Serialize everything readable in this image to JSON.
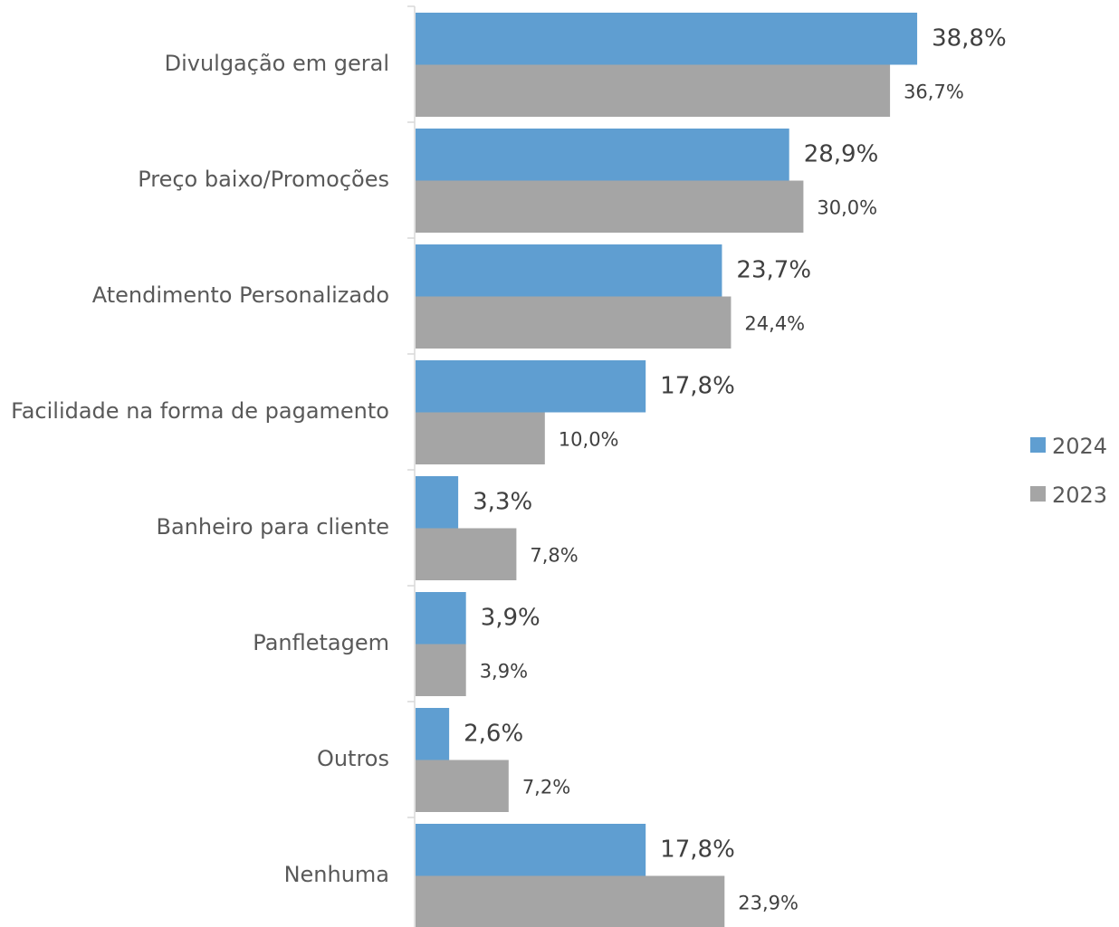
{
  "chart_data": {
    "type": "bar",
    "orientation": "horizontal",
    "categories": [
      "Divulgação em geral",
      "Preço baixo/Promoções",
      "Atendimento Personalizado",
      "Facilidade na forma de pagamento",
      "Banheiro para cliente",
      "Panfletagem",
      "Outros",
      "Nenhuma"
    ],
    "series": [
      {
        "name": "2024",
        "color": "#5f9ed1",
        "values": [
          38.8,
          28.9,
          23.7,
          17.8,
          3.3,
          3.9,
          2.6,
          17.8
        ],
        "value_labels": [
          "38,8%",
          "28,9%",
          "23,7%",
          "17,8%",
          "3,3%",
          "3,9%",
          "2,6%",
          "17,8%"
        ]
      },
      {
        "name": "2023",
        "color": "#a5a5a5",
        "values": [
          36.7,
          30.0,
          24.4,
          10.0,
          7.8,
          3.9,
          7.2,
          23.9
        ],
        "value_labels": [
          "36,7%",
          "30,0%",
          "24,4%",
          "10,0%",
          "7,8%",
          "3,9%",
          "7,2%",
          "23,9%"
        ]
      }
    ],
    "xlim": [
      0,
      50
    ],
    "legend": "right"
  }
}
